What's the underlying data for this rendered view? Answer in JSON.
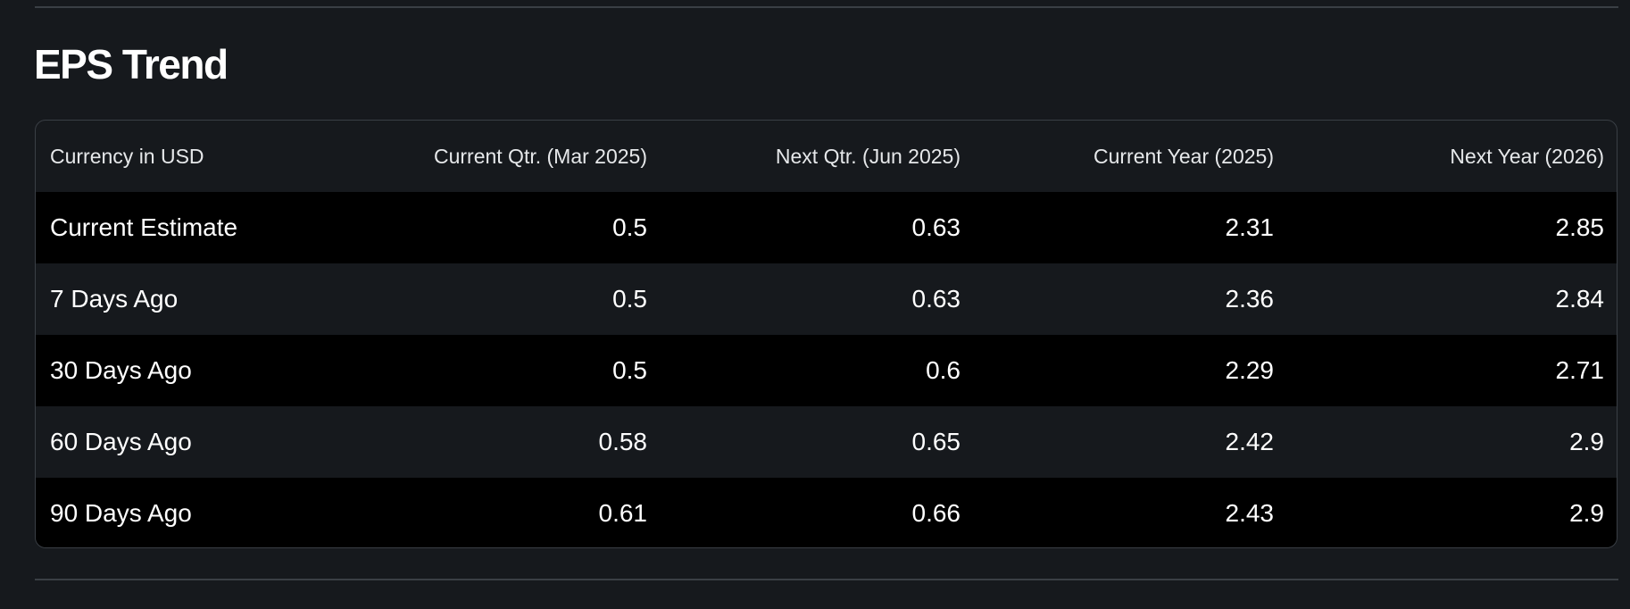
{
  "section": {
    "title": "EPS Trend"
  },
  "table": {
    "headers": [
      "Currency in USD",
      "Current Qtr. (Mar 2025)",
      "Next Qtr. (Jun 2025)",
      "Current Year (2025)",
      "Next Year (2026)"
    ],
    "rows": [
      [
        "Current Estimate",
        "0.5",
        "0.63",
        "2.31",
        "2.85"
      ],
      [
        "7 Days Ago",
        "0.5",
        "0.63",
        "2.36",
        "2.84"
      ],
      [
        "30 Days Ago",
        "0.5",
        "0.6",
        "2.29",
        "2.71"
      ],
      [
        "60 Days Ago",
        "0.58",
        "0.65",
        "2.42",
        "2.9"
      ],
      [
        "90 Days Ago",
        "0.61",
        "0.66",
        "2.43",
        "2.9"
      ]
    ]
  }
}
